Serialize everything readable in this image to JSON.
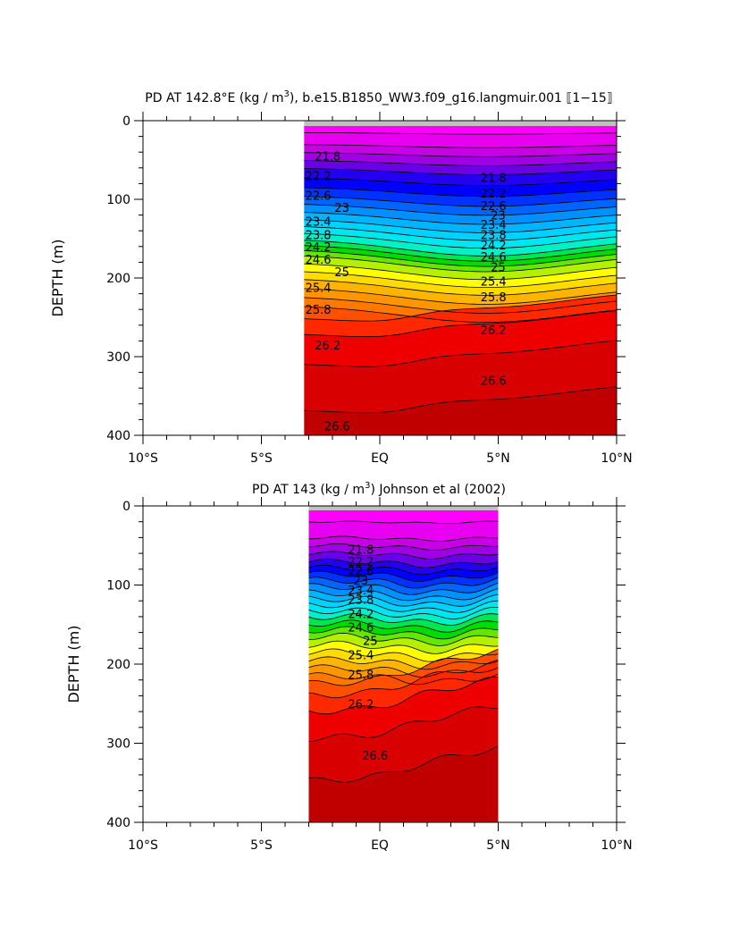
{
  "chart_data": [
    {
      "type": "contour",
      "title": "PD AT 142.8°E (kg / m³), b.e15.B1850_WW3.f09_g16.langmuir.001 ⟦1−15⟧",
      "title_parts": {
        "pre": "PD AT 142.8°E (kg / m",
        "sup": "3",
        "post": "), b.e15.B1850_WW3.f09_g16.langmuir.001 ⟦1−15⟧"
      },
      "xlabel": "",
      "ylabel": "DEPTH (m)",
      "xlim": [
        -10,
        10
      ],
      "ylim": [
        400,
        0
      ],
      "x_ticks": [
        -10,
        -5,
        0,
        5,
        10
      ],
      "x_tick_labels": [
        "10°S",
        "5°S",
        "EQ",
        "5°N",
        "10°N"
      ],
      "y_ticks": [
        0,
        100,
        200,
        300,
        400
      ],
      "y_tick_labels": [
        "0",
        "100",
        "200",
        "300",
        "400"
      ],
      "data_x_range": [
        -3.2,
        10
      ],
      "contour_levels": [
        21.4,
        21.6,
        21.8,
        22.0,
        22.2,
        22.4,
        22.6,
        22.8,
        23.0,
        23.2,
        23.4,
        23.6,
        23.8,
        24.0,
        24.2,
        24.4,
        24.6,
        24.8,
        25.0,
        25.2,
        25.4,
        25.6,
        25.8,
        26.0,
        26.2,
        26.4,
        26.6
      ],
      "depth_profile": {
        "depth": [
          0,
          30,
          60,
          90,
          120,
          150,
          170,
          200,
          240,
          280,
          350,
          400
        ],
        "density": [
          21.2,
          21.6,
          22.2,
          22.7,
          23.3,
          24.0,
          24.6,
          25.2,
          25.9,
          26.3,
          26.55,
          26.7
        ]
      },
      "labels": [
        {
          "text": "21.8",
          "x": -2.2,
          "y": 45
        },
        {
          "text": "22.2",
          "x": -2.6,
          "y": 70
        },
        {
          "text": "22.6",
          "x": -2.6,
          "y": 95
        },
        {
          "text": "23",
          "x": -1.6,
          "y": 110
        },
        {
          "text": "23.4",
          "x": -2.6,
          "y": 128
        },
        {
          "text": "23.8",
          "x": -2.6,
          "y": 145
        },
        {
          "text": "24.2",
          "x": -2.6,
          "y": 160
        },
        {
          "text": "24.6",
          "x": -2.6,
          "y": 176
        },
        {
          "text": "25",
          "x": -1.6,
          "y": 192
        },
        {
          "text": "25.4",
          "x": -2.6,
          "y": 212
        },
        {
          "text": "25.8",
          "x": -2.6,
          "y": 240
        },
        {
          "text": "26.2",
          "x": -2.2,
          "y": 285
        },
        {
          "text": "26.6",
          "x": -1.8,
          "y": 388
        },
        {
          "text": "21.8",
          "x": 4.8,
          "y": 72
        },
        {
          "text": "22.2",
          "x": 4.8,
          "y": 92
        },
        {
          "text": "22.6",
          "x": 4.8,
          "y": 108
        },
        {
          "text": "23",
          "x": 5.0,
          "y": 120
        },
        {
          "text": "23.4",
          "x": 4.8,
          "y": 132
        },
        {
          "text": "23.8",
          "x": 4.8,
          "y": 145
        },
        {
          "text": "24.2",
          "x": 4.8,
          "y": 158
        },
        {
          "text": "24.6",
          "x": 4.8,
          "y": 173
        },
        {
          "text": "25",
          "x": 5.0,
          "y": 186
        },
        {
          "text": "25.4",
          "x": 4.8,
          "y": 204
        },
        {
          "text": "25.8",
          "x": 4.8,
          "y": 224
        },
        {
          "text": "26.2",
          "x": 4.8,
          "y": 266
        },
        {
          "text": "26.6",
          "x": 4.8,
          "y": 330
        }
      ]
    },
    {
      "type": "contour",
      "title": "PD AT 143 (kg / m³) Johnson et al (2002)",
      "title_parts": {
        "pre": "PD AT 143 (kg / m",
        "sup": "3",
        "post": ") Johnson et al (2002)"
      },
      "xlabel": "",
      "ylabel": "DEPTH (m)",
      "xlim": [
        -10,
        10
      ],
      "ylim": [
        400,
        0
      ],
      "x_ticks": [
        -10,
        -5,
        0,
        5,
        10
      ],
      "x_tick_labels": [
        "10°S",
        "5°S",
        "EQ",
        "5°N",
        "10°N"
      ],
      "y_ticks": [
        0,
        100,
        200,
        300,
        400
      ],
      "y_tick_labels": [
        "0",
        "100",
        "200",
        "300",
        "400"
      ],
      "data_x_range": [
        -3,
        5
      ],
      "contour_levels": [
        21.4,
        21.6,
        21.8,
        22.0,
        22.2,
        22.4,
        22.6,
        22.8,
        23.0,
        23.2,
        23.4,
        23.6,
        23.8,
        24.0,
        24.2,
        24.4,
        24.6,
        24.8,
        25.0,
        25.2,
        25.4,
        25.6,
        25.8,
        26.0,
        26.2,
        26.4,
        26.6
      ],
      "depth_profile": {
        "depth": [
          0,
          40,
          70,
          90,
          110,
          140,
          165,
          190,
          230,
          270,
          330,
          400
        ],
        "density": [
          21.2,
          21.6,
          22.2,
          22.7,
          23.2,
          24.0,
          24.6,
          25.1,
          25.9,
          26.3,
          26.55,
          26.75
        ]
      },
      "labels": [
        {
          "text": "21.8",
          "x": -0.8,
          "y": 55
        },
        {
          "text": "22.2",
          "x": -0.8,
          "y": 70
        },
        {
          "text": "22.6",
          "x": -0.8,
          "y": 82
        },
        {
          "text": "23",
          "x": -0.8,
          "y": 94
        },
        {
          "text": "23.4",
          "x": -0.8,
          "y": 106
        },
        {
          "text": "23.8",
          "x": -0.8,
          "y": 118
        },
        {
          "text": "24.2",
          "x": -0.8,
          "y": 136
        },
        {
          "text": "24.6",
          "x": -0.8,
          "y": 153
        },
        {
          "text": "25",
          "x": -0.4,
          "y": 170
        },
        {
          "text": "25.4",
          "x": -0.8,
          "y": 188
        },
        {
          "text": "25.8",
          "x": -0.8,
          "y": 213
        },
        {
          "text": "26.2",
          "x": -0.8,
          "y": 250
        },
        {
          "text": "26.6",
          "x": -0.2,
          "y": 315
        }
      ]
    }
  ]
}
